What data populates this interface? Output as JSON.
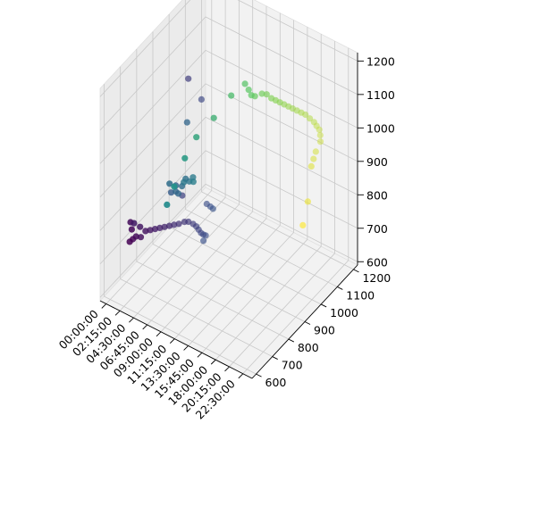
{
  "chart_data": {
    "type": "scatter3d",
    "title": "",
    "xlabel": "",
    "ylabel": "",
    "zlabel": "",
    "grid": true,
    "colormap": "viridis",
    "xlim": [
      -60,
      1440
    ],
    "ylim": [
      575,
      1225
    ],
    "zlim": [
      590,
      1225
    ],
    "x_ticks": [
      "00:00:00",
      "02:15:00",
      "04:30:00",
      "06:45:00",
      "09:00:00",
      "11:15:00",
      "13:30:00",
      "15:45:00",
      "18:00:00",
      "20:15:00",
      "22:30:00"
    ],
    "x_tick_values": [
      0,
      135,
      270,
      405,
      540,
      675,
      810,
      945,
      1080,
      1215,
      1350
    ],
    "y_ticks": [
      600,
      700,
      800,
      900,
      1000,
      1100,
      1200
    ],
    "z_ticks": [
      600,
      700,
      800,
      900,
      1000,
      1100,
      1200
    ],
    "points": [
      [
        0,
        720,
        700
      ],
      [
        15,
        730,
        705
      ],
      [
        30,
        740,
        710
      ],
      [
        45,
        760,
        700
      ],
      [
        60,
        780,
        710
      ],
      [
        75,
        800,
        705
      ],
      [
        90,
        820,
        700
      ],
      [
        105,
        840,
        695
      ],
      [
        120,
        860,
        690
      ],
      [
        135,
        880,
        685
      ],
      [
        150,
        900,
        680
      ],
      [
        165,
        920,
        675
      ],
      [
        180,
        945,
        670
      ],
      [
        195,
        960,
        665
      ],
      [
        210,
        980,
        650
      ],
      [
        225,
        990,
        640
      ],
      [
        240,
        995,
        630
      ],
      [
        255,
        1000,
        620
      ],
      [
        270,
        1005,
        615
      ],
      [
        285,
        1010,
        612
      ],
      [
        295,
        990,
        608
      ],
      [
        20,
        720,
        740
      ],
      [
        40,
        700,
        775
      ],
      [
        70,
        740,
        745
      ],
      [
        90,
        690,
        785
      ],
      [
        280,
        1020,
        700
      ],
      [
        300,
        1030,
        690
      ],
      [
        310,
        1040,
        680
      ],
      [
        230,
        900,
        780
      ],
      [
        345,
        760,
        880
      ],
      [
        375,
        770,
        900
      ],
      [
        390,
        760,
        890
      ],
      [
        400,
        770,
        880
      ],
      [
        420,
        780,
        900
      ],
      [
        440,
        790,
        920
      ],
      [
        460,
        800,
        910
      ],
      [
        480,
        810,
        920
      ],
      [
        500,
        800,
        915
      ],
      [
        425,
        700,
        950
      ],
      [
        470,
        760,
        930
      ],
      [
        210,
        950,
        1100
      ],
      [
        260,
        1000,
        1020
      ],
      [
        390,
        830,
        1060
      ],
      [
        560,
        600,
        960
      ],
      [
        600,
        620,
        1010
      ],
      [
        640,
        660,
        1080
      ],
      [
        690,
        700,
        1130
      ],
      [
        750,
        770,
        1160
      ],
      [
        810,
        840,
        1200
      ],
      [
        850,
        900,
        1210
      ],
      [
        870,
        910,
        1190
      ],
      [
        880,
        920,
        1170
      ],
      [
        900,
        930,
        1165
      ],
      [
        920,
        960,
        1160
      ],
      [
        935,
        980,
        1150
      ],
      [
        950,
        1000,
        1130
      ],
      [
        960,
        1020,
        1115
      ],
      [
        970,
        1040,
        1100
      ],
      [
        980,
        1060,
        1085
      ],
      [
        990,
        1080,
        1070
      ],
      [
        1000,
        1100,
        1055
      ],
      [
        1010,
        1120,
        1040
      ],
      [
        1020,
        1140,
        1025
      ],
      [
        1030,
        1160,
        1010
      ],
      [
        1040,
        1180,
        990
      ],
      [
        1050,
        1200,
        970
      ],
      [
        1060,
        1210,
        955
      ],
      [
        1070,
        1220,
        940
      ],
      [
        1080,
        1220,
        925
      ],
      [
        1090,
        1215,
        910
      ],
      [
        1100,
        1180,
        900
      ],
      [
        1110,
        1160,
        890
      ],
      [
        1120,
        1140,
        880
      ],
      [
        1150,
        1100,
        800
      ],
      [
        1180,
        1050,
        760
      ]
    ]
  }
}
